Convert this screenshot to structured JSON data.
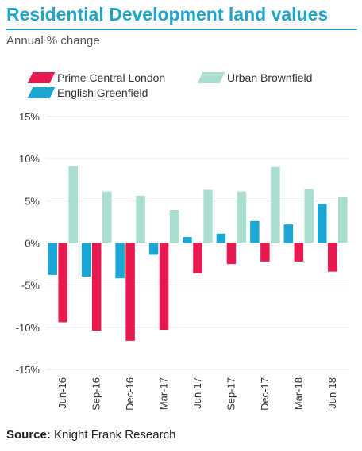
{
  "header": {
    "title": "Residential Development land values",
    "subtitle": "Annual % change"
  },
  "footer": {
    "source_label": "Source:",
    "source_text": "Knight Frank Research"
  },
  "colors": {
    "title": "#1fa3c8",
    "prime_central_london": "#e8194f",
    "urban_brownfield": "#a8ddd0",
    "english_greenfield": "#1aa7d4",
    "grid": "#e6e6e6",
    "text": "#333333"
  },
  "chart_data": {
    "type": "bar",
    "title": "Residential Development land values",
    "subtitle": "Annual % change",
    "xlabel": "",
    "ylabel": "",
    "ylim": [
      -15,
      15
    ],
    "yticks": [
      -15,
      -10,
      -5,
      0,
      5,
      10,
      15
    ],
    "ytick_labels": [
      "-15%",
      "-10%",
      "-5%",
      "0%",
      "5%",
      "10%",
      "15%"
    ],
    "grid": true,
    "legend_position": "top-left",
    "categories": [
      "Jun-16",
      "Sep-16",
      "Dec-16",
      "Mar-17",
      "Jun-17",
      "Sep-17",
      "Dec-17",
      "Mar-18",
      "Jun-18"
    ],
    "series": [
      {
        "name": "English Greenfield",
        "color": "#1aa7d4",
        "values": [
          -3.8,
          -4.0,
          -4.2,
          -1.4,
          0.7,
          1.1,
          2.6,
          2.2,
          4.6
        ]
      },
      {
        "name": "Prime Central London",
        "color": "#e8194f",
        "values": [
          -9.4,
          -10.4,
          -11.6,
          -10.3,
          -3.6,
          -2.5,
          -2.2,
          -2.2,
          -3.4
        ]
      },
      {
        "name": "Urban Brownfield",
        "color": "#a8ddd0",
        "values": [
          9.1,
          6.1,
          5.6,
          3.9,
          6.3,
          6.1,
          9.0,
          6.4,
          5.5
        ]
      }
    ],
    "legend": [
      {
        "name": "Prime Central London",
        "color": "#e8194f"
      },
      {
        "name": "Urban Brownfield",
        "color": "#a8ddd0"
      },
      {
        "name": "English Greenfield",
        "color": "#1aa7d4"
      }
    ]
  }
}
